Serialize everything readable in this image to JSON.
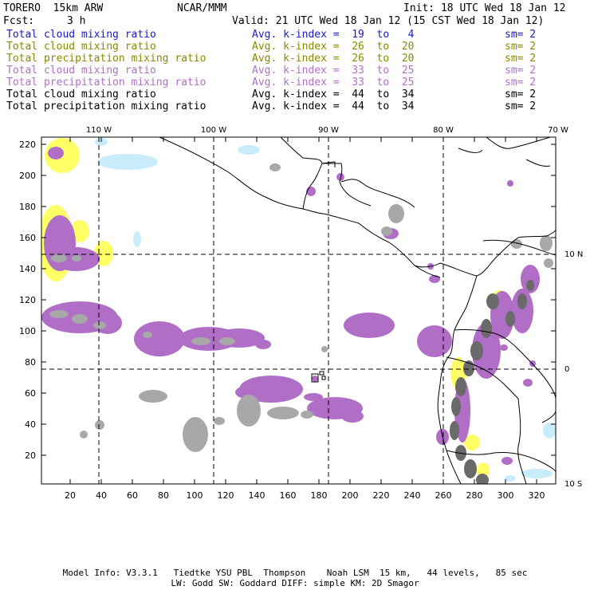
{
  "header": {
    "model": "TORERO  15km ARW",
    "center": "NCAR/MMM",
    "init": "Init: 18 UTC Wed 18 Jan 12",
    "fcst_label": "Fcst:",
    "fcst_value": "3 h",
    "valid": "Valid: 21 UTC Wed 18 Jan 12 (15 CST Wed 18 Jan 12)"
  },
  "legend": [
    {
      "label": "Total cloud mixing ratio",
      "avg": "Avg. k-index =  19  to   4",
      "sm": "sm= 2",
      "color": "#1a1acc"
    },
    {
      "label": "Total cloud mixing ratio",
      "avg": "Avg. k-index =  26  to  20",
      "sm": "sm= 2",
      "color": "#8a8a00"
    },
    {
      "label": "Total precipitation mixing ratio",
      "avg": "Avg. k-index =  26  to  20",
      "sm": "sm= 2",
      "color": "#8a8a00"
    },
    {
      "label": "Total cloud mixing ratio",
      "avg": "Avg. k-index =  33  to  25",
      "sm": "sm= 2",
      "color": "#b070c8"
    },
    {
      "label": "Total precipitation mixing ratio",
      "avg": "Avg. k-index =  33  to  25",
      "sm": "sm= 2",
      "color": "#b070c8"
    },
    {
      "label": "Total cloud mixing ratio",
      "avg": "Avg. k-index =  44  to  34",
      "sm": "sm= 2",
      "color": "#000000"
    },
    {
      "label": "Total precipitation mixing ratio",
      "avg": "Avg. k-index =  44  to  34",
      "sm": "sm= 2",
      "color": "#000000"
    }
  ],
  "map": {
    "lon_labels": [
      "110 W",
      "100 W",
      "90 W",
      "80 W",
      "70 W"
    ],
    "lat_labels": [
      "10 N",
      "0",
      "10 S"
    ],
    "x_ticks": [
      "20",
      "40",
      "60",
      "80",
      "100",
      "120",
      "140",
      "160",
      "180",
      "200",
      "220",
      "240",
      "260",
      "280",
      "300",
      "320"
    ],
    "y_ticks": [
      "20",
      "40",
      "60",
      "80",
      "100",
      "120",
      "140",
      "160",
      "180",
      "200",
      "220"
    ],
    "colors": {
      "cyan": "#c8ecfa",
      "yellow": "#ffff66",
      "purple": "#b06ec6",
      "gray": "#a8a8a8",
      "dark": "#6a6a6a"
    }
  },
  "footer": {
    "line1": "Model Info: V3.3.1   Tiedtke YSU PBL  Thompson    Noah LSM  15 km,   44 levels,   85 sec",
    "line2": "LW: Godd SW: Goddard DIFF: simple KM: 2D Smagor"
  }
}
